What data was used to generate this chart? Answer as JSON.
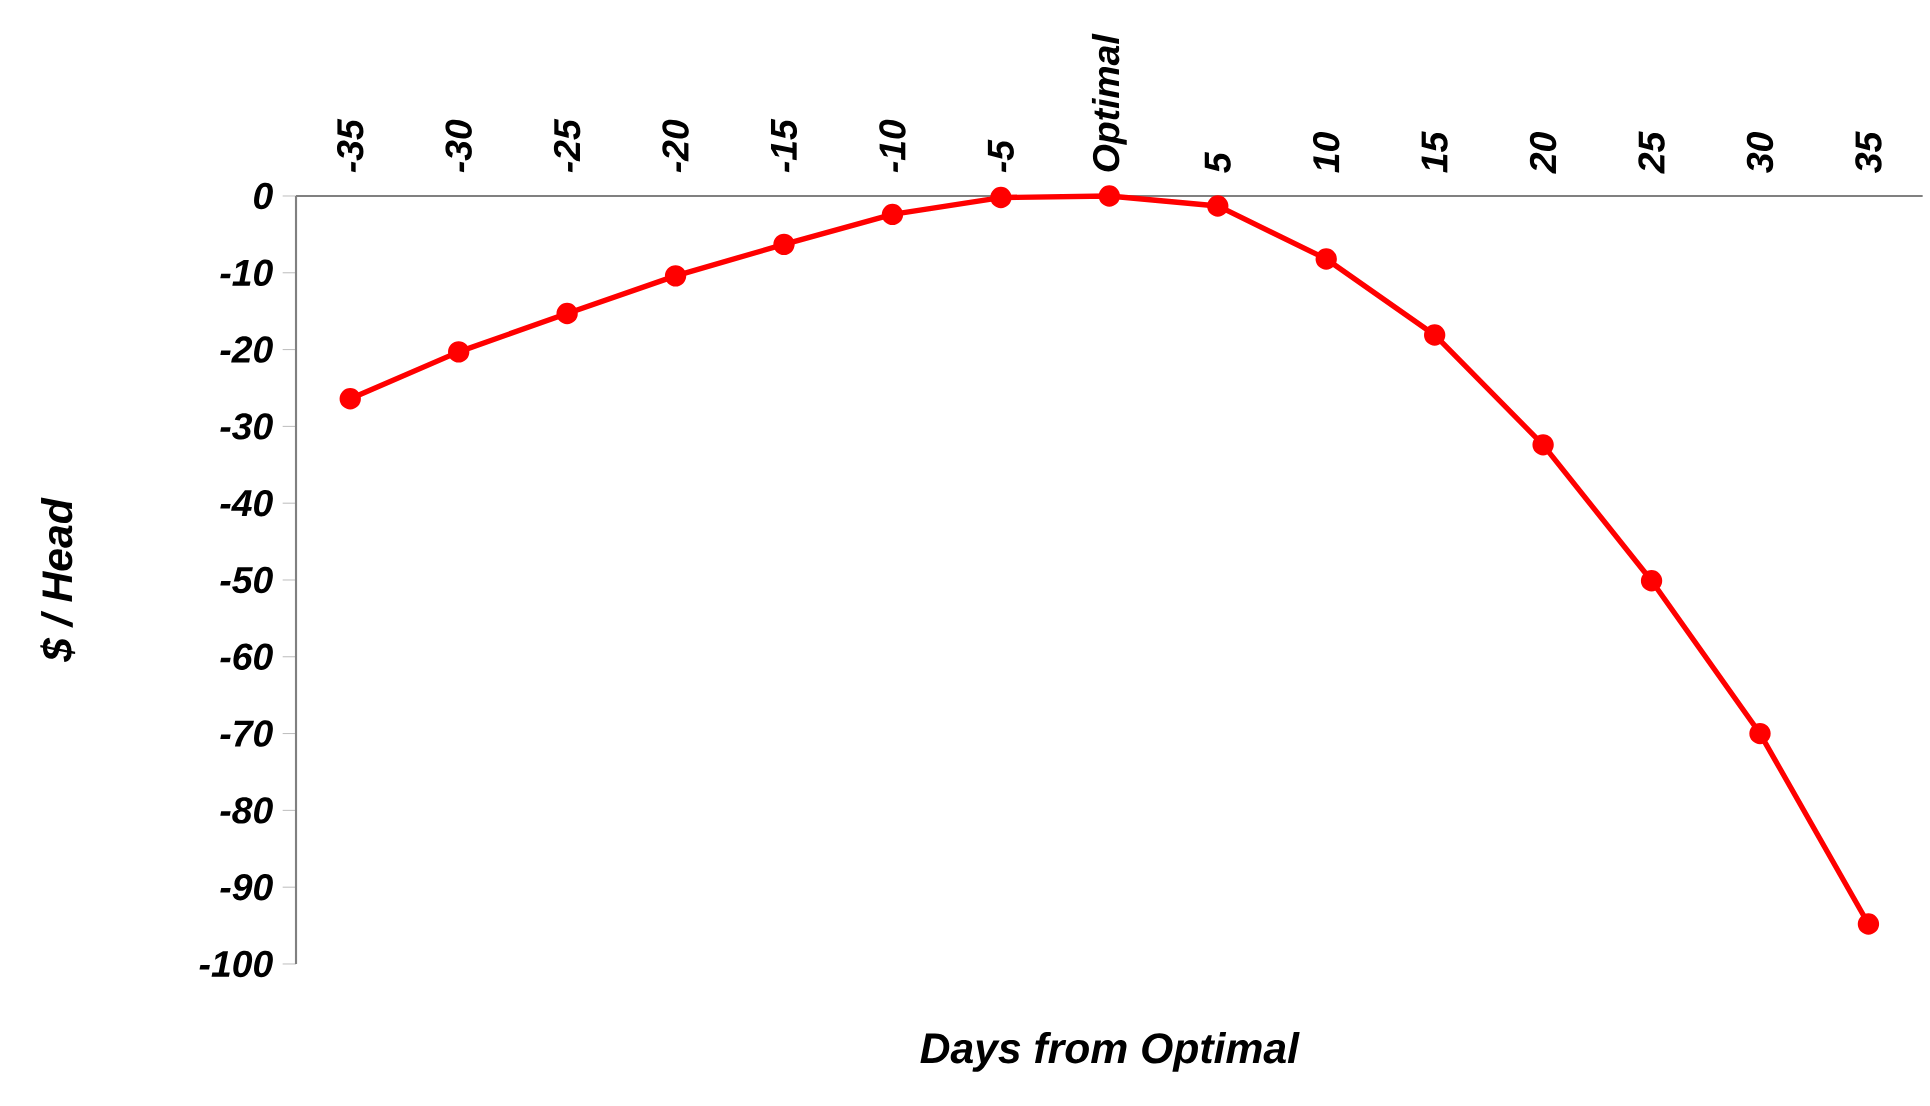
{
  "chart_data": {
    "type": "line",
    "xlabel": "Days from Optimal",
    "ylabel": "$ / Head",
    "categories": [
      "-35",
      "-30",
      "-25",
      "-20",
      "-15",
      "-10",
      "-5",
      "Optimal",
      "5",
      "10",
      "15",
      "20",
      "25",
      "30",
      "35"
    ],
    "values": [
      -26.4,
      -20.3,
      -15.3,
      -10.4,
      -6.3,
      -2.4,
      -0.2,
      0,
      -1.3,
      -8.2,
      -18.1,
      -32.4,
      -50.1,
      -70,
      -94.8
    ],
    "color": "#ff0000",
    "marker": "circle",
    "line_style": "solid",
    "ylim": [
      -100,
      0
    ],
    "yticks": [
      -100,
      -90,
      -80,
      -70,
      -60,
      -50,
      -40,
      -30,
      -20,
      -10,
      0
    ],
    "grid": false
  }
}
